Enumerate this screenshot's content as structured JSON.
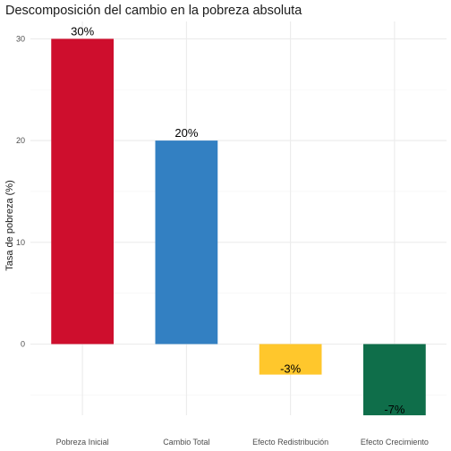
{
  "chart_data": {
    "type": "bar",
    "title": "Descomposición del cambio en la pobreza absoluta",
    "xlabel": "",
    "ylabel": "Tasa de pobreza (%)",
    "categories": [
      "Pobreza Inicial",
      "Cambio Total",
      "Efecto Redistribución",
      "Efecto Crecimiento"
    ],
    "values": [
      30,
      20,
      -3,
      -7
    ],
    "data_labels": [
      "30%",
      "20%",
      "-3%",
      "-7%"
    ],
    "colors": [
      "#ce0e2d",
      "#3380c2",
      "#ffc72c",
      "#0f6e4a"
    ],
    "yticks": [
      0,
      10,
      20,
      30
    ],
    "ytick_labels": [
      "0",
      "10",
      "20",
      "30"
    ],
    "ylim": [
      -7.35,
      31.5
    ],
    "grid": true,
    "legend": "none"
  }
}
